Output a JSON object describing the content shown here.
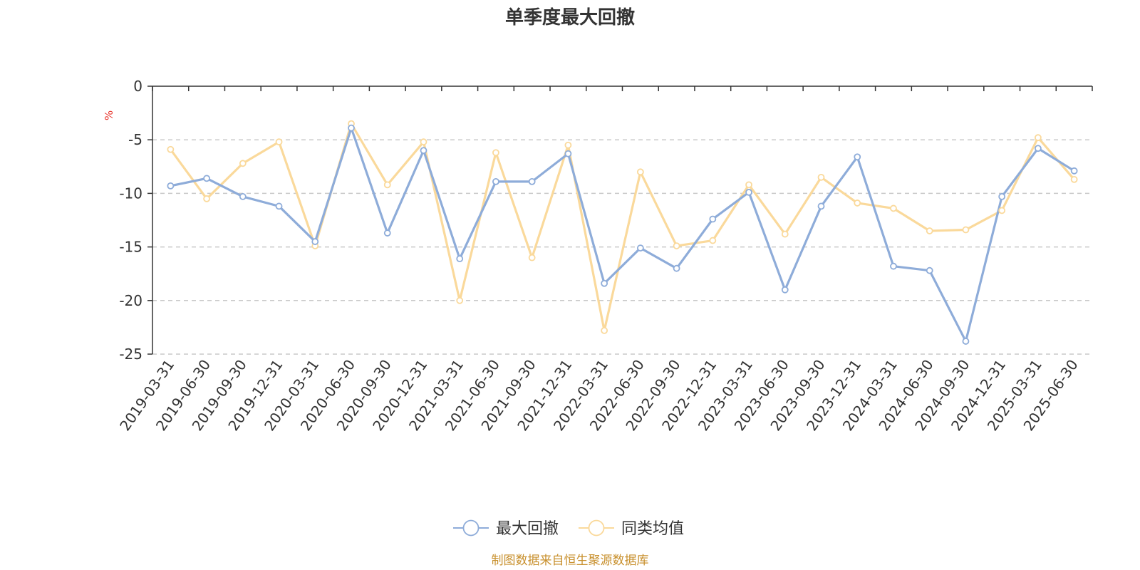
{
  "chart_data": {
    "type": "line",
    "title": "单季度最大回撤",
    "ylabel": "%",
    "ylim": [
      -25,
      0
    ],
    "yticks": [
      0,
      -5,
      -10,
      -15,
      -20,
      -25
    ],
    "grid": true,
    "legend_position": "bottom-center",
    "categories": [
      "2019-03-31",
      "2019-06-30",
      "2019-09-30",
      "2019-12-31",
      "2020-03-31",
      "2020-06-30",
      "2020-09-30",
      "2020-12-31",
      "2021-03-31",
      "2021-06-30",
      "2021-09-30",
      "2021-12-31",
      "2022-03-31",
      "2022-06-30",
      "2022-09-30",
      "2022-12-31",
      "2023-03-31",
      "2023-06-30",
      "2023-09-30",
      "2023-12-31",
      "2024-03-31",
      "2024-06-30",
      "2024-09-30",
      "2024-12-31",
      "2025-03-31",
      "2025-06-30"
    ],
    "series": [
      {
        "name": "最大回撤",
        "color": "#8eacd9",
        "values": [
          -9.3,
          -8.6,
          -10.3,
          -11.2,
          -14.5,
          -3.9,
          -13.7,
          -6.0,
          -16.1,
          -8.9,
          -8.9,
          -6.3,
          -18.4,
          -15.1,
          -17.0,
          -12.4,
          -9.9,
          -19.0,
          -11.2,
          -6.6,
          -16.8,
          -17.2,
          -23.8,
          -10.3,
          -5.8,
          -7.9
        ]
      },
      {
        "name": "同类均值",
        "color": "#fad99b",
        "values": [
          -5.9,
          -10.5,
          -7.2,
          -5.2,
          -14.9,
          -3.5,
          -9.2,
          -5.2,
          -20.0,
          -6.2,
          -16.0,
          -5.5,
          -22.8,
          -8.0,
          -14.9,
          -14.4,
          -9.2,
          -13.8,
          -8.5,
          -10.9,
          -11.4,
          -13.5,
          -13.4,
          -11.6,
          -4.8,
          -8.7
        ]
      }
    ]
  },
  "footer": {
    "source": "制图数据来自恒生聚源数据库"
  }
}
